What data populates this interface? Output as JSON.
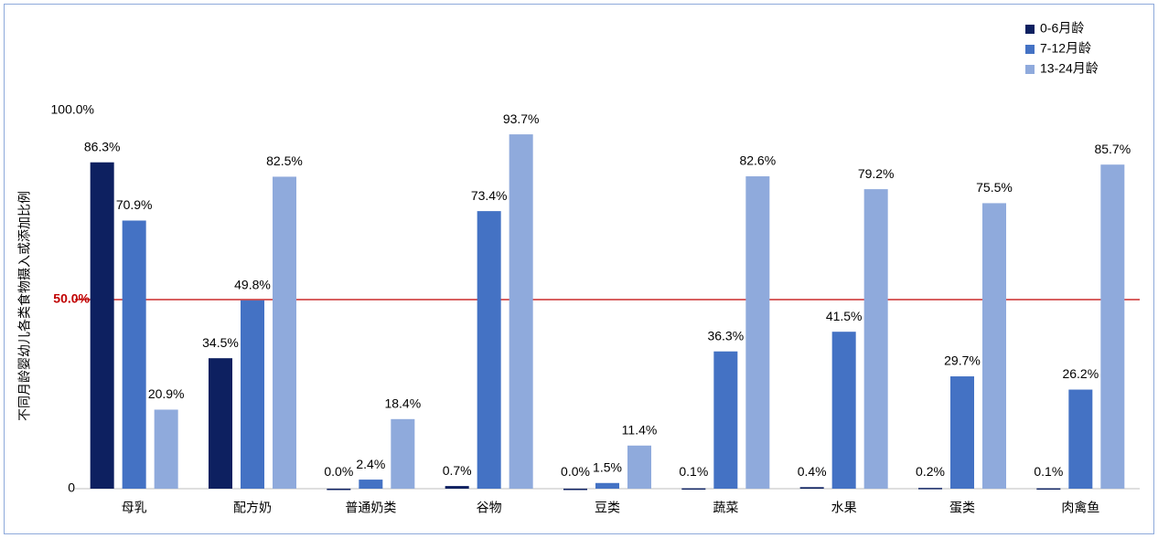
{
  "chart_data": {
    "type": "bar",
    "y_label": "不同月龄婴幼儿各类食物摄入或添加比例",
    "categories": [
      "母乳",
      "配方奶",
      "普通奶类",
      "谷物",
      "豆类",
      "蔬菜",
      "水果",
      "蛋类",
      "肉禽鱼"
    ],
    "series": [
      {
        "name": "0-6月龄",
        "color": "#0d2060",
        "values": [
          86.3,
          34.5,
          0.0,
          0.7,
          0.0,
          0.1,
          0.4,
          0.2,
          0.1
        ],
        "value_labels": [
          "86.3%",
          "34.5%",
          "0.0%",
          "0.7%",
          "0.0%",
          "0.1%",
          "0.4%",
          "0.2%",
          "0.1%"
        ]
      },
      {
        "name": "7-12月龄",
        "color": "#4472c4",
        "values": [
          70.9,
          49.8,
          2.4,
          73.4,
          1.5,
          36.3,
          41.5,
          29.7,
          26.2
        ],
        "value_labels": [
          "70.9%",
          "49.8%",
          "2.4%",
          "73.4%",
          "1.5%",
          "36.3%",
          "41.5%",
          "29.7%",
          "26.2%"
        ]
      },
      {
        "name": "13-24月龄",
        "color": "#8faadc",
        "values": [
          20.9,
          82.5,
          18.4,
          93.7,
          11.4,
          82.6,
          79.2,
          75.5,
          85.7
        ],
        "value_labels": [
          "20.9%",
          "82.5%",
          "18.4%",
          "93.7%",
          "11.4%",
          "82.6%",
          "79.2%",
          "75.5%",
          "85.7%"
        ]
      }
    ],
    "ylim": [
      0,
      100
    ],
    "yticks": [
      0,
      {
        "value": 100,
        "label": "100.0%"
      }
    ],
    "reference_line": {
      "value": 50,
      "label": "50.0%",
      "color": "#c00000"
    },
    "legend": "top-right"
  }
}
